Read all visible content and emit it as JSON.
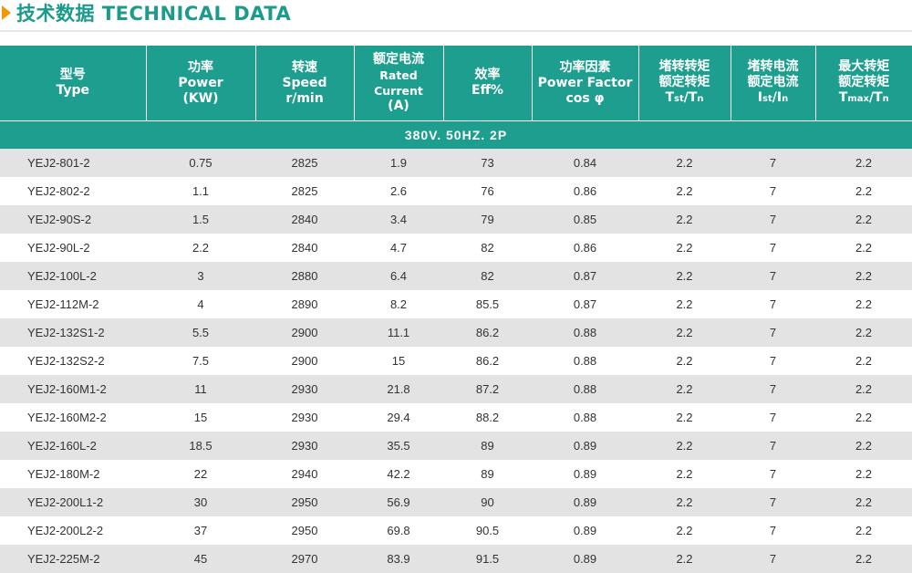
{
  "page_title": "技术数据 TECHNICAL DATA",
  "header": {
    "type": {
      "cn": "型号",
      "en": "Type"
    },
    "power": {
      "cn": "功率",
      "en": "Power",
      "unit": "(KW)"
    },
    "speed": {
      "cn": "转速",
      "en": "Speed",
      "unit": "r/min"
    },
    "current": {
      "cn": "额定电流",
      "en": "Rated Current",
      "unit": "(A)"
    },
    "eff": {
      "cn": "效率",
      "en": "Eff%"
    },
    "pf": {
      "cn": "功率因素",
      "en": "Power Factor",
      "unit": "cos φ"
    },
    "tst": {
      "cn1": "堵转转矩",
      "cn2": "额定转矩",
      "ratio_main": "T",
      "ratio_sub": "st",
      "ratio_div": "/T",
      "ratio_sub2": "n"
    },
    "ist": {
      "cn1": "堵转电流",
      "cn2": "额定电流",
      "ratio_main": "I",
      "ratio_sub": "st",
      "ratio_div": "/I",
      "ratio_sub2": "n"
    },
    "tmax": {
      "cn1": "最大转矩",
      "cn2": "额定转矩",
      "ratio_main": "T",
      "ratio_sub": "max",
      "ratio_div": "/T",
      "ratio_sub2": "n"
    }
  },
  "section_label": "380V. 50HZ. 2P",
  "rows": [
    {
      "type": "YEJ2-801-2",
      "power": "0.75",
      "speed": "2825",
      "current": "1.9",
      "eff": "73",
      "pf": "0.84",
      "tst": "2.2",
      "ist": "7",
      "tmax": "2.2"
    },
    {
      "type": "YEJ2-802-2",
      "power": "1.1",
      "speed": "2825",
      "current": "2.6",
      "eff": "76",
      "pf": "0.86",
      "tst": "2.2",
      "ist": "7",
      "tmax": "2.2"
    },
    {
      "type": "YEJ2-90S-2",
      "power": "1.5",
      "speed": "2840",
      "current": "3.4",
      "eff": "79",
      "pf": "0.85",
      "tst": "2.2",
      "ist": "7",
      "tmax": "2.2"
    },
    {
      "type": "YEJ2-90L-2",
      "power": "2.2",
      "speed": "2840",
      "current": "4.7",
      "eff": "82",
      "pf": "0.86",
      "tst": "2.2",
      "ist": "7",
      "tmax": "2.2"
    },
    {
      "type": "YEJ2-100L-2",
      "power": "3",
      "speed": "2880",
      "current": "6.4",
      "eff": "82",
      "pf": "0.87",
      "tst": "2.2",
      "ist": "7",
      "tmax": "2.2"
    },
    {
      "type": "YEJ2-112M-2",
      "power": "4",
      "speed": "2890",
      "current": "8.2",
      "eff": "85.5",
      "pf": "0.87",
      "tst": "2.2",
      "ist": "7",
      "tmax": "2.2"
    },
    {
      "type": "YEJ2-132S1-2",
      "power": "5.5",
      "speed": "2900",
      "current": "11.1",
      "eff": "86.2",
      "pf": "0.88",
      "tst": "2.2",
      "ist": "7",
      "tmax": "2.2"
    },
    {
      "type": "YEJ2-132S2-2",
      "power": "7.5",
      "speed": "2900",
      "current": "15",
      "eff": "86.2",
      "pf": "0.88",
      "tst": "2.2",
      "ist": "7",
      "tmax": "2.2"
    },
    {
      "type": "YEJ2-160M1-2",
      "power": "11",
      "speed": "2930",
      "current": "21.8",
      "eff": "87.2",
      "pf": "0.88",
      "tst": "2.2",
      "ist": "7",
      "tmax": "2.2"
    },
    {
      "type": "YEJ2-160M2-2",
      "power": "15",
      "speed": "2930",
      "current": "29.4",
      "eff": "88.2",
      "pf": "0.88",
      "tst": "2.2",
      "ist": "7",
      "tmax": "2.2"
    },
    {
      "type": "YEJ2-160L-2",
      "power": "18.5",
      "speed": "2930",
      "current": "35.5",
      "eff": "89",
      "pf": "0.89",
      "tst": "2.2",
      "ist": "7",
      "tmax": "2.2"
    },
    {
      "type": "YEJ2-180M-2",
      "power": "22",
      "speed": "2940",
      "current": "42.2",
      "eff": "89",
      "pf": "0.89",
      "tst": "2.2",
      "ist": "7",
      "tmax": "2.2"
    },
    {
      "type": "YEJ2-200L1-2",
      "power": "30",
      "speed": "2950",
      "current": "56.9",
      "eff": "90",
      "pf": "0.89",
      "tst": "2.2",
      "ist": "7",
      "tmax": "2.2"
    },
    {
      "type": "YEJ2-200L2-2",
      "power": "37",
      "speed": "2950",
      "current": "69.8",
      "eff": "90.5",
      "pf": "0.89",
      "tst": "2.2",
      "ist": "7",
      "tmax": "2.2"
    },
    {
      "type": "YEJ2-225M-2",
      "power": "45",
      "speed": "2970",
      "current": "83.9",
      "eff": "91.5",
      "pf": "0.89",
      "tst": "2.2",
      "ist": "7",
      "tmax": "2.2"
    }
  ],
  "colors": {
    "accent": "#1e9e8e",
    "arrow": "#f39800",
    "title": "#1c9a8c",
    "shade": "#e3e3e3"
  },
  "icons": {
    "title_marker": "triangle-arrow-icon"
  }
}
